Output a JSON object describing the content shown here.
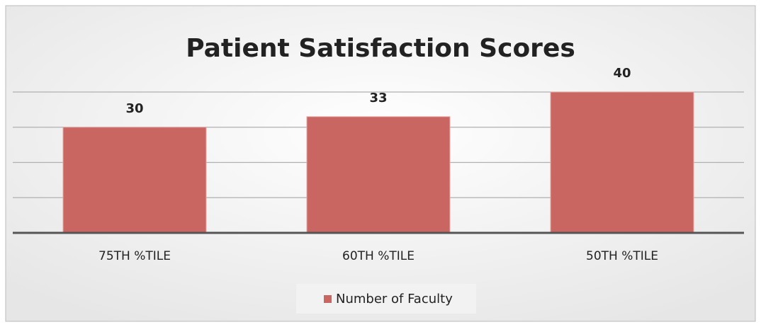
{
  "chart_data": {
    "type": "bar",
    "title": "Patient Satisfaction Scores",
    "categories": [
      "75TH %TILE",
      "60TH %TILE",
      "50TH %TILE"
    ],
    "series": [
      {
        "name": "Number of Faculty",
        "color": "#c96662",
        "values": [
          30,
          33,
          40
        ]
      }
    ],
    "ylim": [
      0,
      40
    ],
    "yticks": [
      0,
      10,
      20,
      30,
      40
    ],
    "grid": true,
    "legend": "bottom"
  }
}
